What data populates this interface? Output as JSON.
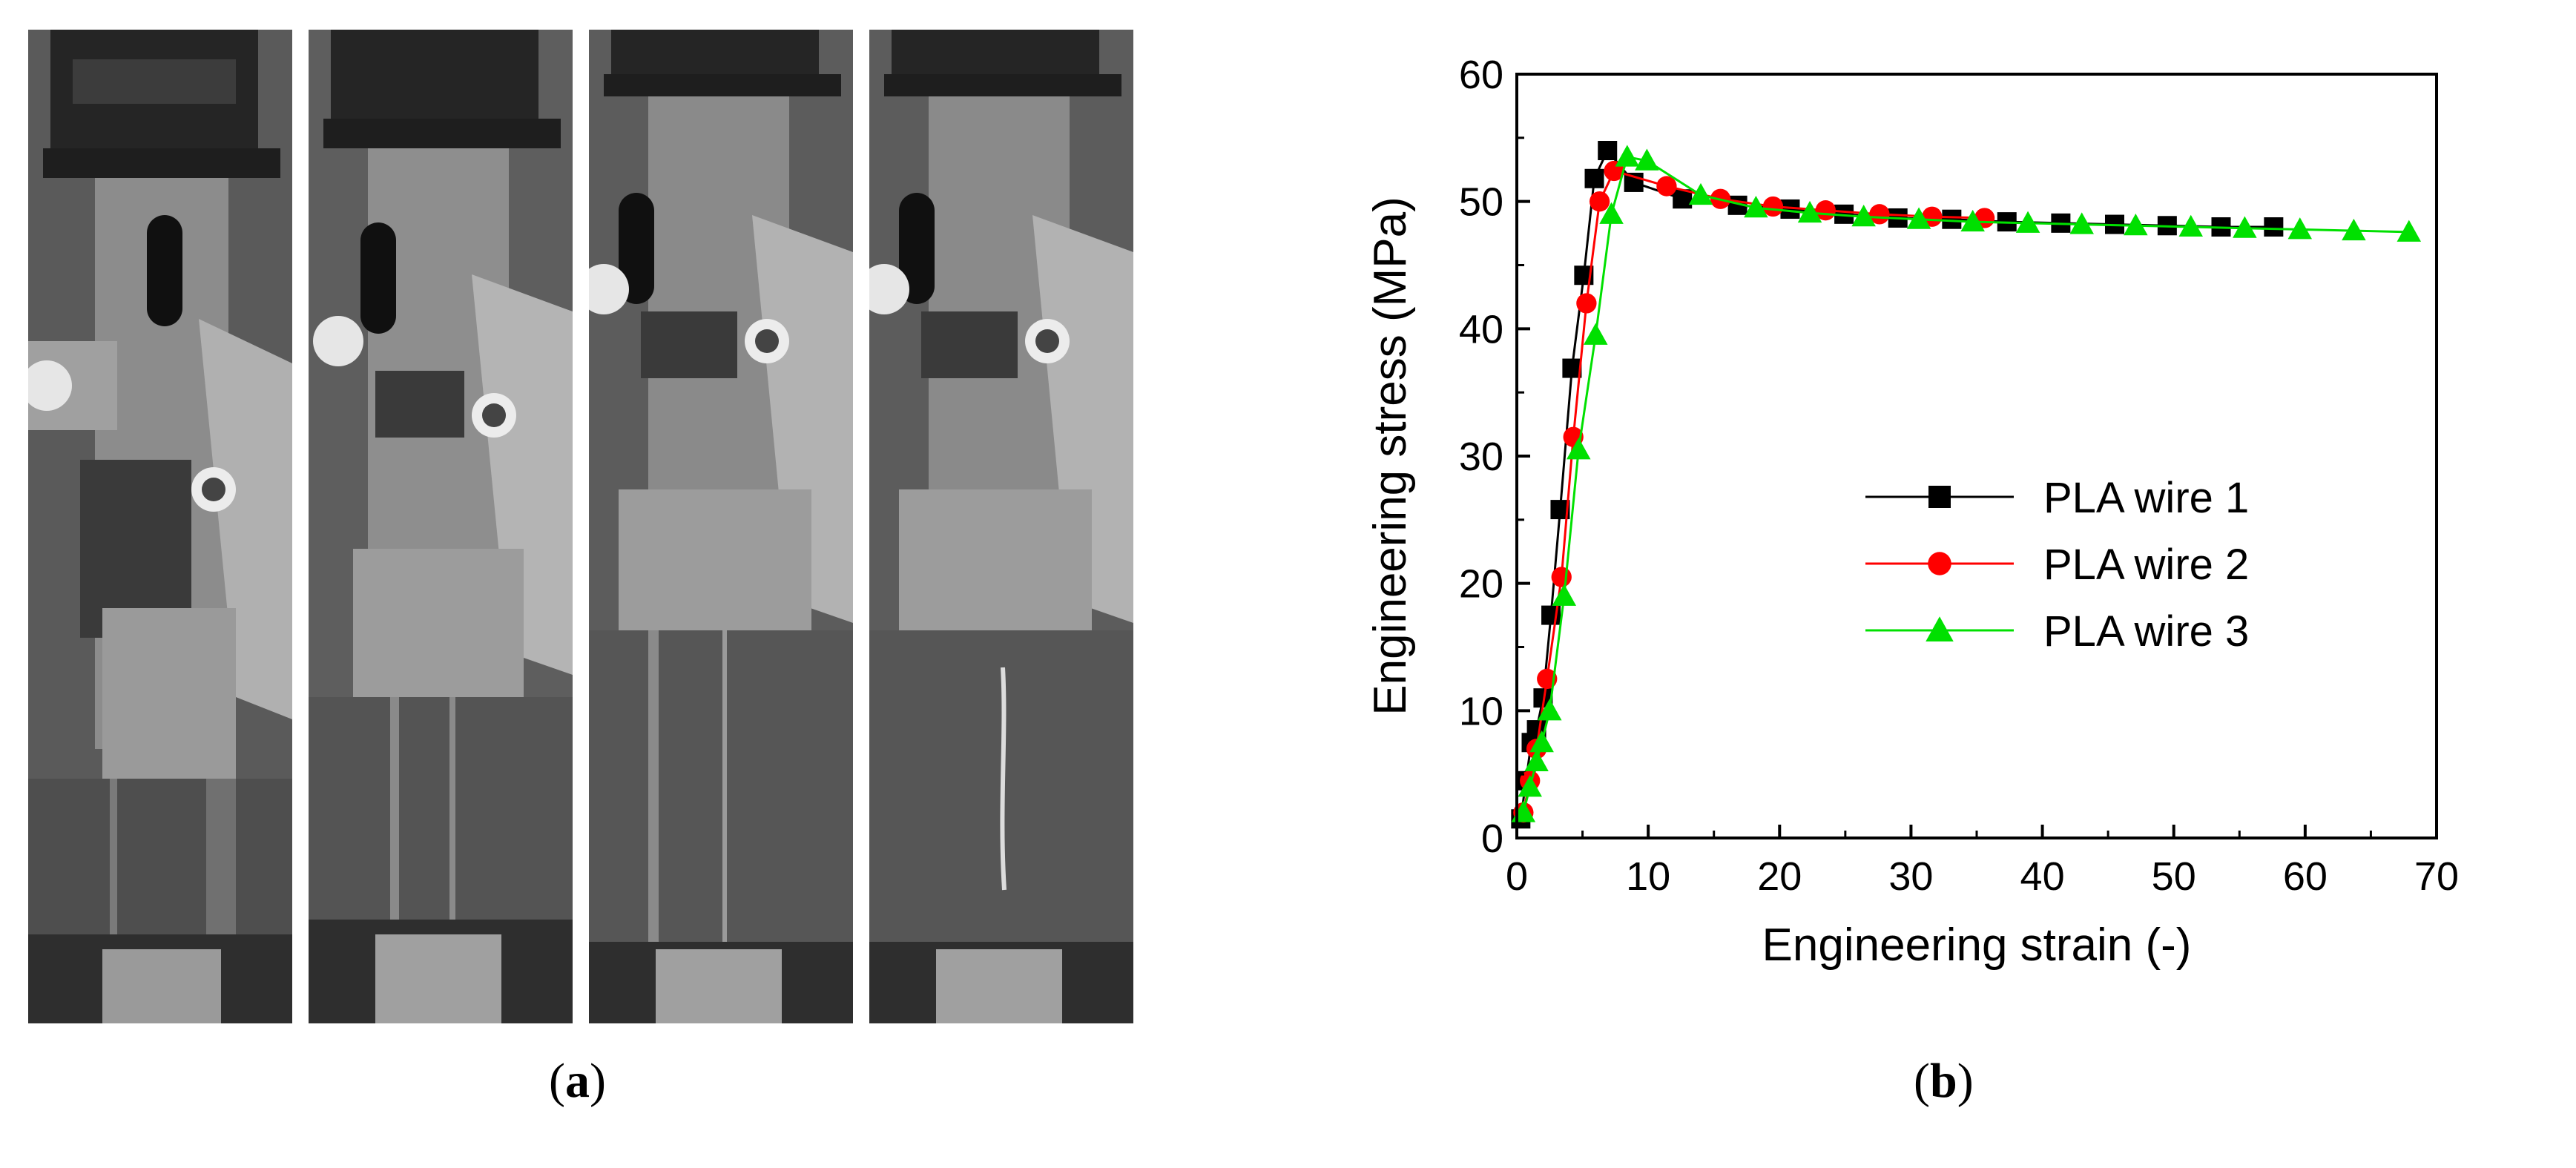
{
  "panels": {
    "a": {
      "label": "a",
      "frame_count": 4
    },
    "b": {
      "label": "b"
    }
  },
  "chart_data": {
    "type": "scatter",
    "xlabel": "Engineering strain (-)",
    "ylabel": "Engineering stress (MPa)",
    "xlim": [
      0,
      70
    ],
    "ylim": [
      0,
      60
    ],
    "xticks": [
      0,
      10,
      20,
      30,
      40,
      50,
      60,
      70
    ],
    "yticks": [
      0,
      10,
      20,
      30,
      40,
      50,
      60
    ],
    "grid": false,
    "legend_position": "center-right",
    "series": [
      {
        "name": "PLA wire 1",
        "color": "#000000",
        "marker": "square",
        "x": [
          0.3,
          0.7,
          1.1,
          1.5,
          2.0,
          2.6,
          3.3,
          4.2,
          5.1,
          5.9,
          6.9,
          8.9,
          12.6,
          16.8,
          20.8,
          24.9,
          29.0,
          33.1,
          37.3,
          41.4,
          45.5,
          49.5,
          53.6,
          57.6
        ],
        "y": [
          1.5,
          4.5,
          7.5,
          8.5,
          11.0,
          17.5,
          25.8,
          36.9,
          44.2,
          51.8,
          54.0,
          51.5,
          50.2,
          49.7,
          49.4,
          49.0,
          48.7,
          48.6,
          48.4,
          48.3,
          48.2,
          48.1,
          48.0,
          48.0
        ]
      },
      {
        "name": "PLA wire 2",
        "color": "#ff0000",
        "marker": "circle",
        "x": [
          0.5,
          1.0,
          1.5,
          2.3,
          3.4,
          4.3,
          5.3,
          6.3,
          7.4,
          11.4,
          15.5,
          19.5,
          23.5,
          27.6,
          31.6,
          35.6
        ],
        "y": [
          2.0,
          4.5,
          7.0,
          12.5,
          20.5,
          31.5,
          42.0,
          50.0,
          52.4,
          51.2,
          50.2,
          49.6,
          49.3,
          49.0,
          48.8,
          48.7
        ]
      },
      {
        "name": "PLA wire 3",
        "color": "#00e000",
        "marker": "triangle",
        "x": [
          0.5,
          1.0,
          1.5,
          1.9,
          2.5,
          3.6,
          4.7,
          6.0,
          7.2,
          8.4,
          9.9,
          14.0,
          18.2,
          22.3,
          26.4,
          30.6,
          34.7,
          38.9,
          43.0,
          47.1,
          51.3,
          55.4,
          59.6,
          63.7,
          67.9
        ],
        "y": [
          2.0,
          4.0,
          6.0,
          7.5,
          10.0,
          19.0,
          30.5,
          39.5,
          49.0,
          53.5,
          53.2,
          50.5,
          49.5,
          49.1,
          48.8,
          48.6,
          48.4,
          48.3,
          48.2,
          48.1,
          48.0,
          47.9,
          47.8,
          47.7,
          47.6
        ]
      }
    ]
  }
}
